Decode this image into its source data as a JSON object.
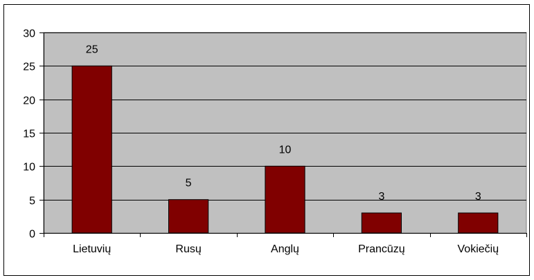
{
  "chart_data": {
    "type": "bar",
    "categories": [
      "Lietuvių",
      "Rusų",
      "Anglų",
      "Prancūzų",
      "Vokiečių"
    ],
    "values": [
      25,
      5,
      10,
      3,
      3
    ],
    "data_labels": [
      "25",
      "5",
      "10",
      "3",
      "3"
    ],
    "title": "",
    "xlabel": "",
    "ylabel": "",
    "ylim": [
      0,
      30
    ],
    "yticks": [
      0,
      5,
      10,
      15,
      20,
      25,
      30
    ],
    "ytick_labels": [
      "0",
      "5",
      "10",
      "15",
      "20",
      "25",
      "30"
    ],
    "grid": "horizontal",
    "legend": "none",
    "colors": {
      "bar_fill": "#800000",
      "bar_stroke": "#000000",
      "plot_background": "#c0c0c0",
      "gridline": "#000000",
      "axis": "#000000"
    }
  }
}
